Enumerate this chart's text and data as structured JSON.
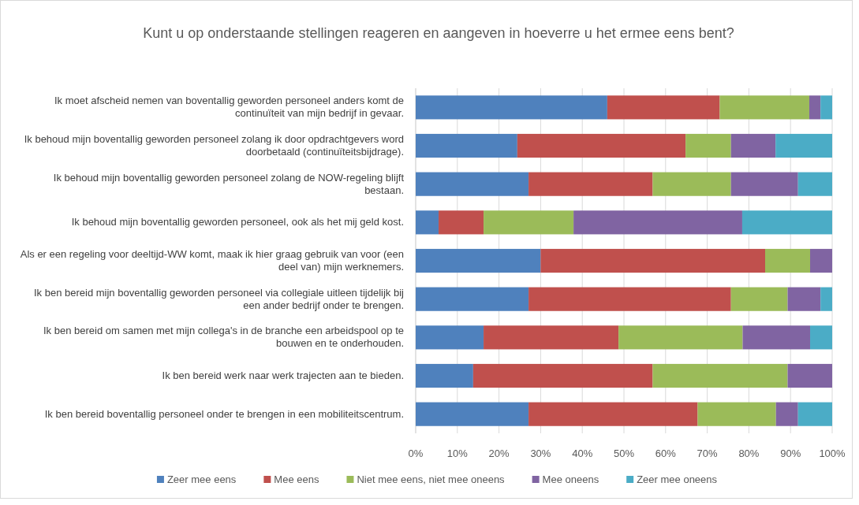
{
  "chart_data": {
    "type": "bar",
    "orientation": "horizontal",
    "stacked": true,
    "title": "Kunt u op onderstaande stellingen reageren en aangeven in hoeverre u het ermee eens bent?",
    "categories": [
      "Ik moet afscheid nemen van boventallig geworden personeel anders komt de continuïteit van mijn bedrijf in gevaar.",
      "Ik behoud mijn boventallig geworden personeel zolang ik door opdrachtgevers word doorbetaald (continuïteitsbijdrage).",
      "Ik behoud mijn boventallig geworden personeel zolang de NOW-regeling blijft bestaan.",
      "Ik behoud mijn boventallig geworden personeel, ook als het mij geld kost.",
      "Als er een regeling voor deeltijd-WW komt, maak ik hier graag gebruik van voor (een deel van) mijn werknemers.",
      "Ik ben bereid mijn boventallig geworden personeel via collegiale uitleen tijdelijk bij een ander bedrijf onder te brengen.",
      "Ik ben bereid om samen met mijn collega's in de branche een arbeidspool op te bouwen en te onderhouden.",
      "Ik ben bereid werk naar werk trajecten aan te bieden.",
      "Ik ben bereid boventallig personeel onder te brengen in een mobiliteitscentrum."
    ],
    "series": [
      {
        "name": "Zeer mee eens",
        "color": "#4f81bd",
        "values": [
          46,
          24.4,
          27.1,
          5.5,
          30,
          27.1,
          16.3,
          13.8,
          27.1
        ]
      },
      {
        "name": "Mee eens",
        "color": "#c0504d",
        "values": [
          27,
          40.4,
          29.8,
          10.8,
          53.9,
          48.6,
          32.4,
          43.1,
          40.6
        ]
      },
      {
        "name": "Niet mee eens, niet mee oneens",
        "color": "#9bbb59",
        "values": [
          21.5,
          10.9,
          18.8,
          21.6,
          10.8,
          13.6,
          29.8,
          32.4,
          18.8
        ]
      },
      {
        "name": "Mee oneens",
        "color": "#8064a2",
        "values": [
          2.7,
          10.7,
          16.1,
          40.5,
          5.3,
          7.9,
          16.2,
          10.7,
          5.3
        ]
      },
      {
        "name": "Zeer mee oneens",
        "color": "#4bacc6",
        "values": [
          2.8,
          13.6,
          8.2,
          21.6,
          0,
          2.8,
          5.3,
          0,
          8.2
        ]
      }
    ],
    "xlim": [
      0,
      100
    ],
    "xticks": [
      {
        "value": 0,
        "label": "0%"
      },
      {
        "value": 10,
        "label": "10%"
      },
      {
        "value": 20,
        "label": "20%"
      },
      {
        "value": 30,
        "label": "30%"
      },
      {
        "value": 40,
        "label": "40%"
      },
      {
        "value": 50,
        "label": "50%"
      },
      {
        "value": 60,
        "label": "60%"
      },
      {
        "value": 70,
        "label": "70%"
      },
      {
        "value": 80,
        "label": "80%"
      },
      {
        "value": 90,
        "label": "90%"
      },
      {
        "value": 100,
        "label": "100%"
      }
    ],
    "grid": "x",
    "legend": "bottom"
  }
}
